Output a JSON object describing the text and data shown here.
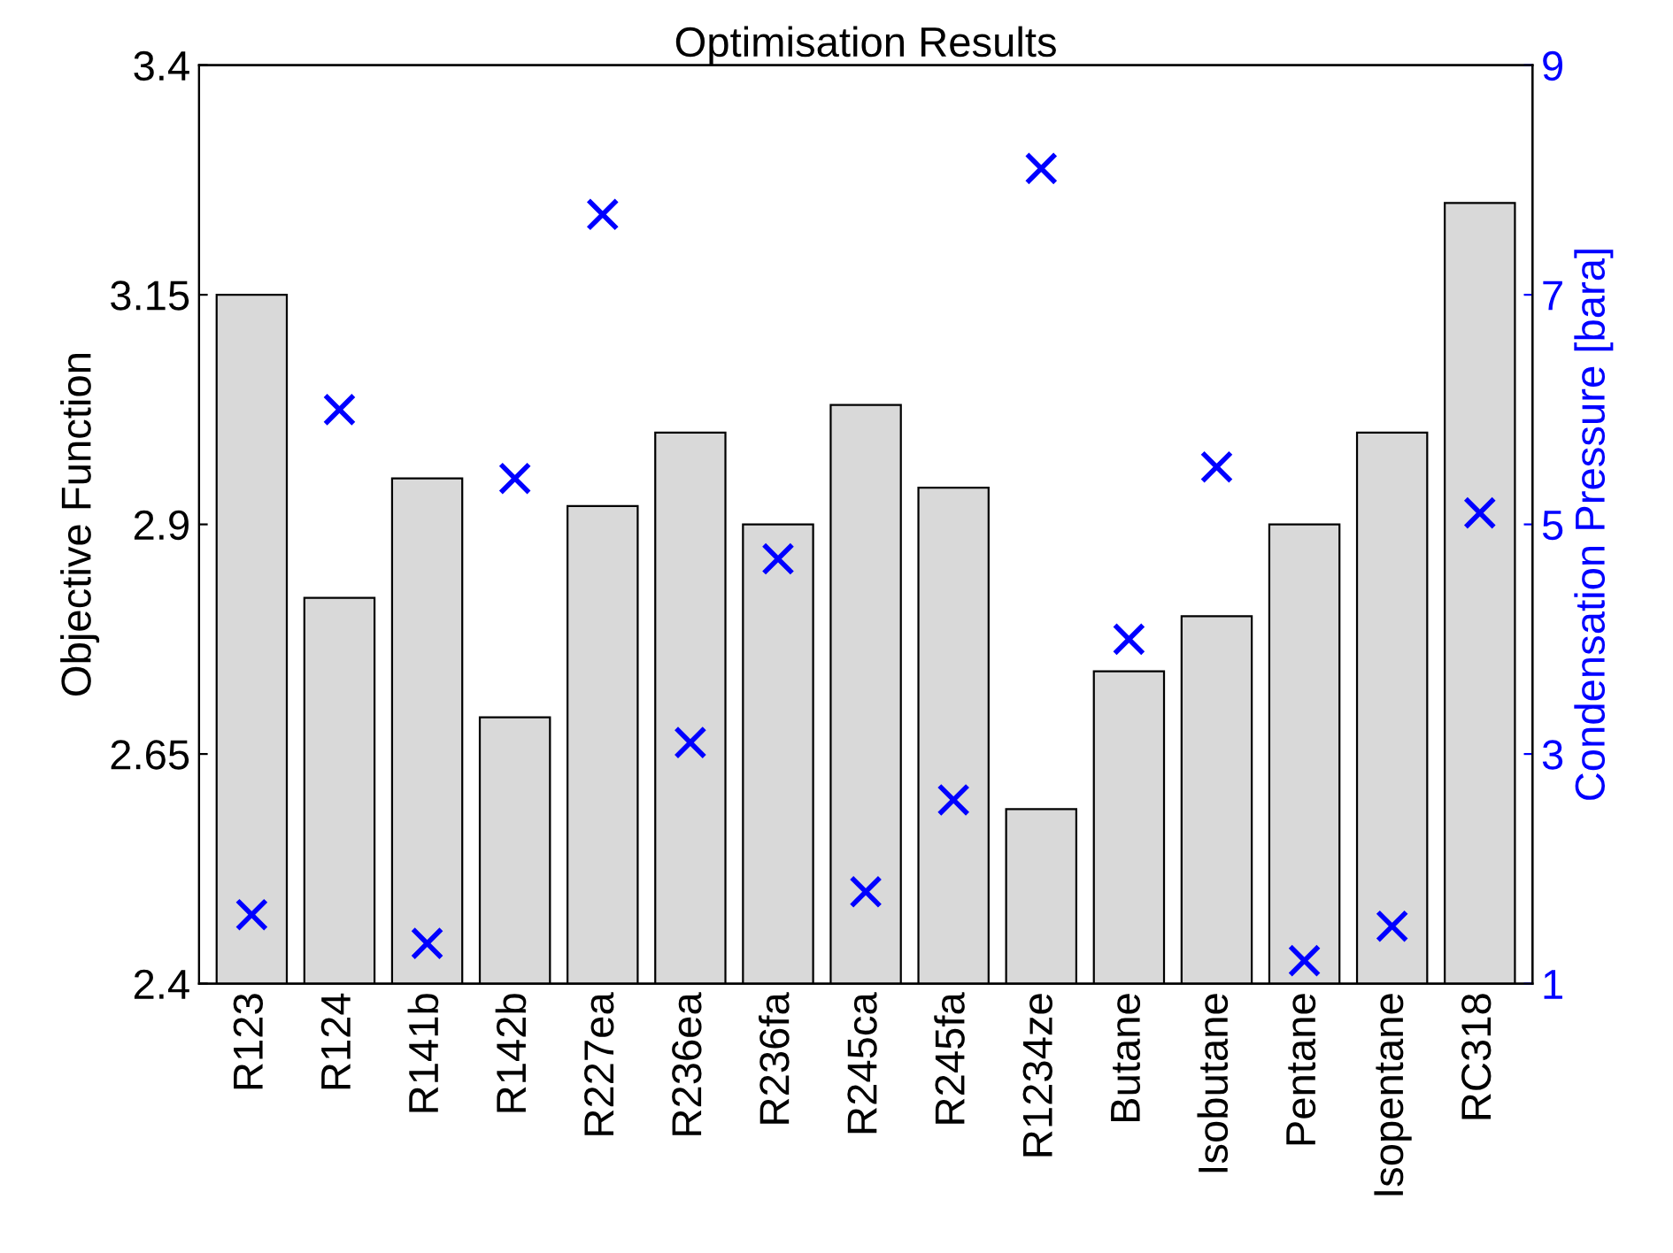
{
  "chart_data": {
    "type": "bar",
    "title": "Optimisation Results",
    "ylabel": "Objective Function",
    "y2label": "Condensation Pressure [bara]",
    "categories": [
      "R123",
      "R124",
      "R141b",
      "R142b",
      "R227ea",
      "R236ea",
      "R236fa",
      "R245ca",
      "R245fa",
      "R1234ze",
      "Butane",
      "Isobutane",
      "Pentane",
      "Isopentane",
      "RC318"
    ],
    "series": [
      {
        "color": "#d9d9d9",
        "values": [
          3.15,
          2.82,
          2.95,
          2.69,
          2.92,
          3.0,
          2.9,
          3.03,
          2.94,
          2.59,
          2.74,
          2.8,
          2.9,
          3.0,
          3.25
        ]
      },
      {
        "type": "scatter",
        "axis": "y2",
        "color": "#0000ff",
        "marker": "cross",
        "values": [
          1.6,
          6.0,
          1.35,
          5.4,
          7.7,
          3.1,
          4.7,
          1.8,
          2.6,
          8.1,
          4.0,
          5.5,
          1.2,
          1.5,
          5.1
        ]
      }
    ],
    "ylim": [
      2.4,
      3.4
    ],
    "yticks": [
      2.4,
      2.65,
      2.9,
      3.15,
      3.4
    ],
    "y2lim": [
      1,
      9
    ],
    "y2ticks": [
      1,
      3,
      5,
      7,
      9
    ],
    "grid": false,
    "legend": false
  }
}
